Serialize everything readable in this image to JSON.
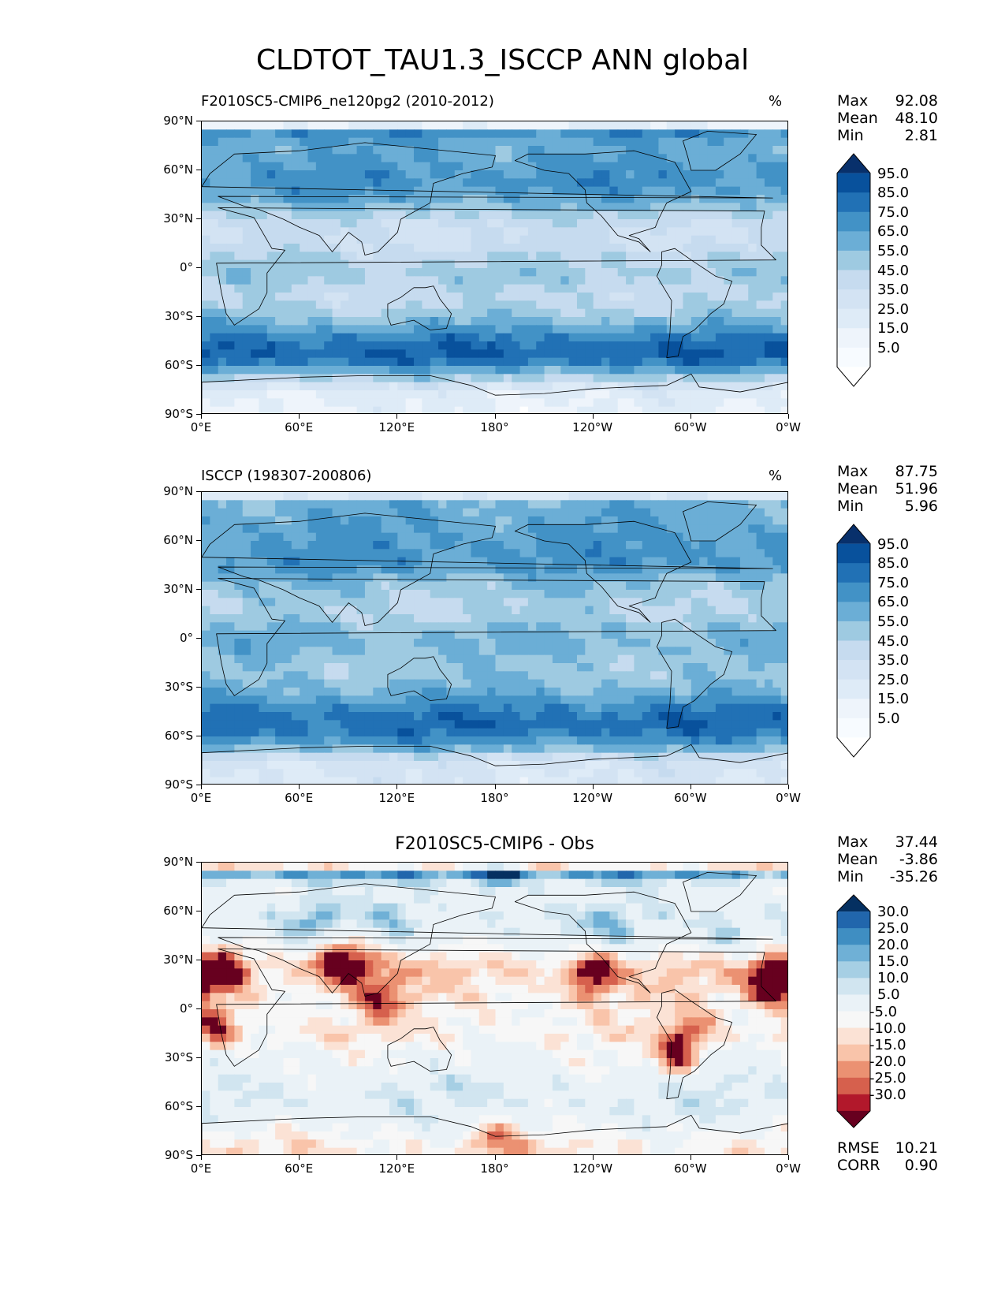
{
  "figure_title": "CLDTOT_TAU1.3_ISCCP ANN global",
  "lat_ticks": [
    "90°N",
    "60°N",
    "30°N",
    "0°",
    "30°S",
    "60°S",
    "90°S"
  ],
  "lon_ticks": [
    "0°E",
    "60°E",
    "120°E",
    "180°",
    "120°W",
    "60°W",
    "0°W"
  ],
  "panels": [
    {
      "title": "F2010SC5-CMIP6_ne120pg2 (2010-2012)",
      "units": "%",
      "stats": [
        {
          "name": "Max",
          "value": "92.08"
        },
        {
          "name": "Mean",
          "value": "48.10"
        },
        {
          "name": "Min",
          "value": "2.81"
        }
      ],
      "colorbar_labels": [
        "95.0",
        "85.0",
        "75.0",
        "65.0",
        "55.0",
        "45.0",
        "35.0",
        "25.0",
        "15.0",
        "5.0"
      ],
      "colorbar_colors": [
        "#08306b",
        "#08519c",
        "#2171b5",
        "#4292c6",
        "#6baed6",
        "#9ecae1",
        "#c6dbef",
        "#d3e3f3",
        "#deebf7",
        "#eef4fb",
        "#f7fbff",
        "#ffffff"
      ]
    },
    {
      "title": "ISCCP (198307-200806)",
      "units": "%",
      "stats": [
        {
          "name": "Max",
          "value": "87.75"
        },
        {
          "name": "Mean",
          "value": "51.96"
        },
        {
          "name": "Min",
          "value": "5.96"
        }
      ],
      "colorbar_labels": [
        "95.0",
        "85.0",
        "75.0",
        "65.0",
        "55.0",
        "45.0",
        "35.0",
        "25.0",
        "15.0",
        "5.0"
      ],
      "colorbar_colors": [
        "#08306b",
        "#08519c",
        "#2171b5",
        "#4292c6",
        "#6baed6",
        "#9ecae1",
        "#c6dbef",
        "#d3e3f3",
        "#deebf7",
        "#eef4fb",
        "#f7fbff",
        "#ffffff"
      ]
    },
    {
      "title": "F2010SC5-CMIP6 - Obs",
      "units": "",
      "stats": [
        {
          "name": "Max",
          "value": "37.44"
        },
        {
          "name": "Mean",
          "value": "-3.86"
        },
        {
          "name": "Min",
          "value": "-35.26"
        }
      ],
      "colorbar_labels": [
        "30.0",
        "25.0",
        "20.0",
        "15.0",
        "10.0",
        "5.0",
        "-5.0",
        "-10.0",
        "-15.0",
        "-20.0",
        "-25.0",
        "-30.0"
      ],
      "colorbar_colors": [
        "#053061",
        "#2166ac",
        "#3f8ec2",
        "#6fb0d6",
        "#a6cfe4",
        "#d1e5f0",
        "#eaf2f7",
        "#f7f7f7",
        "#fbe2d5",
        "#f9c4aa",
        "#eb9172",
        "#d6604d",
        "#b2182b",
        "#67001f"
      ],
      "extra_stats": [
        {
          "name": "RMSE",
          "value": "10.21"
        },
        {
          "name": "CORR",
          "value": "0.90"
        }
      ]
    }
  ],
  "chart_data": [
    {
      "type": "heatmap",
      "title": "F2010SC5-CMIP6_ne120pg2 (2010-2012)",
      "units": "%",
      "xlim": [
        0,
        360
      ],
      "ylim": [
        -90,
        90
      ],
      "x_tick_labels": [
        "0°E",
        "60°E",
        "120°E",
        "180°",
        "120°W",
        "60°W",
        "0°W"
      ],
      "y_tick_labels": [
        "90°N",
        "60°N",
        "30°N",
        "0°",
        "30°S",
        "60°S",
        "90°S"
      ],
      "zonal_mean_profile": {
        "lat": [
          -85,
          -75,
          -65,
          -55,
          -45,
          -35,
          -25,
          -15,
          -5,
          5,
          15,
          25,
          35,
          45,
          55,
          65,
          75,
          85
        ],
        "value": [
          15,
          20,
          55,
          85,
          80,
          60,
          45,
          40,
          50,
          45,
          35,
          35,
          50,
          65,
          70,
          65,
          60,
          75
        ]
      },
      "stats": {
        "max": 92.08,
        "mean": 48.1,
        "min": 2.81
      },
      "colorbar_levels": [
        5,
        15,
        25,
        35,
        45,
        55,
        65,
        75,
        85,
        95
      ]
    },
    {
      "type": "heatmap",
      "title": "ISCCP (198307-200806)",
      "units": "%",
      "xlim": [
        0,
        360
      ],
      "ylim": [
        -90,
        90
      ],
      "x_tick_labels": [
        "0°E",
        "60°E",
        "120°E",
        "180°",
        "120°W",
        "60°W",
        "0°W"
      ],
      "y_tick_labels": [
        "90°N",
        "60°N",
        "30°N",
        "0°",
        "30°S",
        "60°S",
        "90°S"
      ],
      "zonal_mean_profile": {
        "lat": [
          -85,
          -75,
          -65,
          -55,
          -45,
          -35,
          -25,
          -15,
          -5,
          5,
          15,
          25,
          35,
          45,
          55,
          65,
          75,
          85
        ],
        "value": [
          25,
          30,
          65,
          82,
          78,
          62,
          52,
          50,
          58,
          55,
          45,
          48,
          55,
          68,
          68,
          65,
          62,
          58
        ]
      },
      "stats": {
        "max": 87.75,
        "mean": 51.96,
        "min": 5.96
      },
      "colorbar_levels": [
        5,
        15,
        25,
        35,
        45,
        55,
        65,
        75,
        85,
        95
      ]
    },
    {
      "type": "heatmap",
      "title": "F2010SC5-CMIP6 - Obs",
      "xlim": [
        0,
        360
      ],
      "ylim": [
        -90,
        90
      ],
      "x_tick_labels": [
        "0°E",
        "60°E",
        "120°E",
        "180°",
        "120°W",
        "60°W",
        "0°W"
      ],
      "y_tick_labels": [
        "90°N",
        "60°N",
        "30°N",
        "0°",
        "30°S",
        "60°S",
        "90°S"
      ],
      "zonal_mean_profile": {
        "lat": [
          -85,
          -75,
          -65,
          -55,
          -45,
          -35,
          -25,
          -15,
          -5,
          5,
          15,
          25,
          35,
          45,
          55,
          65,
          75,
          85
        ],
        "value": [
          -10,
          -5,
          2,
          5,
          3,
          -2,
          -5,
          -10,
          -8,
          -10,
          -12,
          -15,
          -5,
          2,
          5,
          2,
          0,
          25
        ]
      },
      "stats": {
        "max": 37.44,
        "mean": -3.86,
        "min": -35.26,
        "rmse": 10.21,
        "corr": 0.9
      },
      "colorbar_levels": [
        -30,
        -25,
        -20,
        -15,
        -10,
        -5,
        5,
        10,
        15,
        20,
        25,
        30
      ]
    }
  ]
}
